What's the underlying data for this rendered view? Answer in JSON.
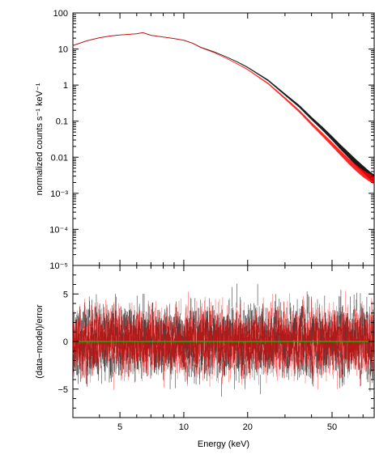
{
  "chart_data": [
    {
      "type": "line",
      "panel": "spectrum",
      "xscale": "log",
      "yscale": "log",
      "xlim": [
        3,
        79
      ],
      "ylim": [
        1e-05,
        100
      ],
      "xlabel": "",
      "ylabel": "normalized counts s⁻¹ keV⁻¹",
      "grid": false,
      "yticks": [
        {
          "value": 100,
          "label": "100"
        },
        {
          "value": 10,
          "label": "10"
        },
        {
          "value": 1,
          "label": "1"
        },
        {
          "value": 0.1,
          "label": "0.1"
        },
        {
          "value": 0.01,
          "label": "0.01"
        },
        {
          "value": 0.001,
          "label": "10⁻³"
        },
        {
          "value": 0.0001,
          "label": "10⁻⁴"
        },
        {
          "value": 1e-05,
          "label": "10⁻⁵"
        }
      ],
      "series": [
        {
          "color": "#000000",
          "x": [
            3.0,
            3.5,
            4.0,
            4.5,
            5.0,
            5.5,
            6.0,
            6.4,
            7.0,
            8.0,
            9.0,
            10.0,
            11.0,
            12.0,
            14.0,
            16.0,
            18.0,
            20.0,
            25.0,
            30.0,
            35.0,
            40.0,
            45.0,
            50.0,
            55.0,
            60.0,
            65.0,
            70.0,
            75.0,
            79.0
          ],
          "y": [
            12.5,
            17,
            20.5,
            23,
            24.5,
            25.5,
            26.5,
            28.5,
            24,
            21.5,
            19.5,
            17.5,
            14.5,
            11.2,
            8.2,
            5.9,
            4.3,
            3.1,
            1.35,
            0.55,
            0.26,
            0.12,
            0.063,
            0.034,
            0.019,
            0.0115,
            0.0072,
            0.0048,
            0.0033,
            0.0026
          ]
        },
        {
          "color": "#ff0000",
          "x": [
            3.0,
            3.5,
            4.0,
            4.5,
            5.0,
            5.5,
            6.0,
            6.4,
            7.0,
            8.0,
            9.0,
            10.0,
            11.0,
            12.0,
            14.0,
            16.0,
            18.0,
            20.0,
            25.0,
            30.0,
            35.0,
            40.0,
            45.0,
            50.0,
            55.0,
            60.0,
            65.0,
            70.0,
            75.0,
            79.0
          ],
          "y": [
            12.5,
            17,
            20.5,
            23,
            24.5,
            25.5,
            26.5,
            28.5,
            24,
            21.5,
            19.5,
            17.5,
            14.5,
            11,
            7.8,
            5.4,
            3.8,
            2.7,
            1.1,
            0.43,
            0.19,
            0.085,
            0.043,
            0.023,
            0.013,
            0.0078,
            0.0051,
            0.0036,
            0.0028,
            0.0024
          ]
        }
      ]
    },
    {
      "type": "line",
      "panel": "residuals",
      "xscale": "log",
      "yscale": "linear",
      "xlim": [
        3,
        79
      ],
      "ylim": [
        -8,
        8
      ],
      "xlabel": "Energy (keV)",
      "ylabel": "(data−model)/error",
      "grid": false,
      "xticks": [
        {
          "value": 5,
          "label": "5"
        },
        {
          "value": 10,
          "label": "10"
        },
        {
          "value": 20,
          "label": "20"
        },
        {
          "value": 50,
          "label": "50"
        }
      ],
      "yticks": [
        {
          "value": 5,
          "label": "5"
        },
        {
          "value": 0,
          "label": "0"
        },
        {
          "value": -5,
          "label": "−5"
        }
      ],
      "reference_line": {
        "y": 0,
        "color": "#00cc00"
      },
      "series": [
        {
          "color": "#000000",
          "spread": 1.6,
          "points": 2200
        },
        {
          "color": "#ff0000",
          "spread": 1.5,
          "points": 2200
        }
      ]
    }
  ]
}
